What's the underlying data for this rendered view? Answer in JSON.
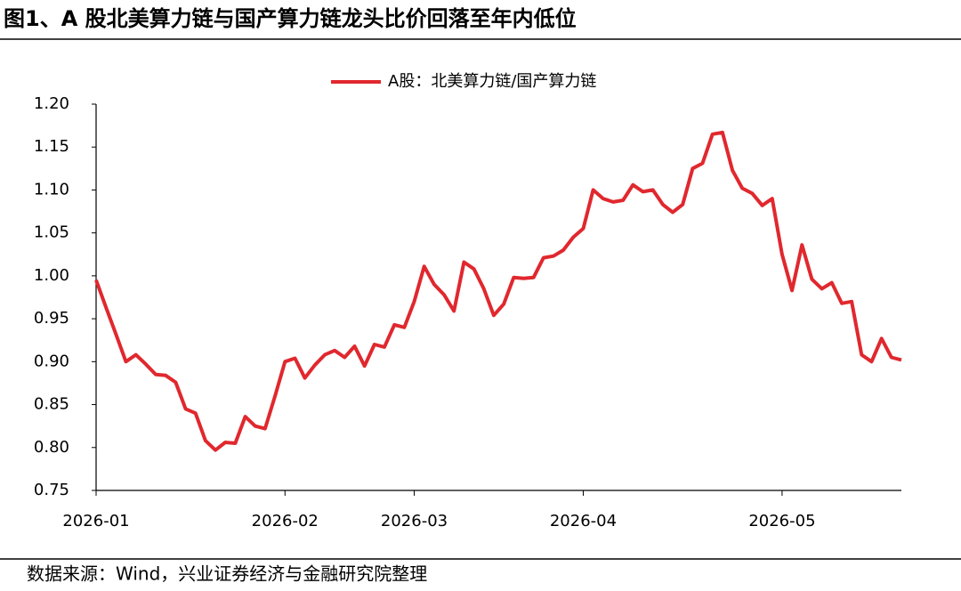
{
  "header": {
    "title": "图1、A 股北美算力链与国产算力链龙头比价回落至年内低位"
  },
  "chart_data": {
    "type": "line",
    "categories": [
      "2026-01",
      null,
      null,
      null,
      null,
      null,
      null,
      null,
      null,
      null,
      null,
      null,
      null,
      null,
      null,
      null,
      null,
      null,
      null,
      "2026-02",
      null,
      null,
      null,
      null,
      null,
      null,
      null,
      null,
      null,
      null,
      null,
      null,
      "2026-03",
      null,
      null,
      null,
      null,
      null,
      null,
      null,
      null,
      null,
      null,
      null,
      null,
      null,
      null,
      null,
      null,
      "2026-04",
      null,
      null,
      null,
      null,
      null,
      null,
      null,
      null,
      null,
      null,
      null,
      null,
      null,
      null,
      null,
      null,
      null,
      null,
      null,
      "2026-05",
      null,
      null,
      null,
      null,
      null,
      null,
      null,
      null,
      null,
      null,
      null,
      null
    ],
    "series": [
      {
        "name": "A股：北美算力链/国产算力链",
        "color": "#e0282e",
        "values": [
          0.995,
          0.963,
          0.932,
          0.9,
          0.908,
          0.897,
          0.885,
          0.884,
          0.876,
          0.845,
          0.84,
          0.808,
          0.797,
          0.806,
          0.805,
          0.836,
          0.825,
          0.822,
          0.86,
          0.9,
          0.904,
          0.881,
          0.896,
          0.908,
          0.913,
          0.905,
          0.918,
          0.895,
          0.92,
          0.917,
          0.943,
          0.94,
          0.97,
          1.011,
          0.99,
          0.978,
          0.959,
          1.016,
          1.008,
          0.985,
          0.954,
          0.967,
          0.998,
          0.997,
          0.998,
          1.021,
          1.023,
          1.03,
          1.045,
          1.055,
          1.1,
          1.09,
          1.086,
          1.088,
          1.106,
          1.098,
          1.1,
          1.083,
          1.074,
          1.083,
          1.125,
          1.131,
          1.165,
          1.167,
          1.123,
          1.102,
          1.096,
          1.082,
          1.09,
          1.025,
          0.983,
          1.036,
          0.996,
          0.985,
          0.992,
          0.968,
          0.97,
          0.908,
          0.9,
          0.927,
          0.905,
          0.902
        ]
      }
    ],
    "ylim": [
      0.75,
      1.2
    ],
    "yticks": [
      0.75,
      {
        "value": 0.8,
        "label": "0.80"
      },
      0.85,
      {
        "value": 0.9,
        "label": "0.90"
      },
      0.95,
      {
        "value": 1.0,
        "label": "1.00"
      },
      1.05,
      {
        "value": 1.1,
        "label": "1.10"
      },
      1.15,
      {
        "value": 1.2,
        "label": "1.20"
      }
    ],
    "legend": "top",
    "grid": false
  },
  "footer": {
    "source": "数据来源：Wind，兴业证券经济与金融研究院整理"
  }
}
